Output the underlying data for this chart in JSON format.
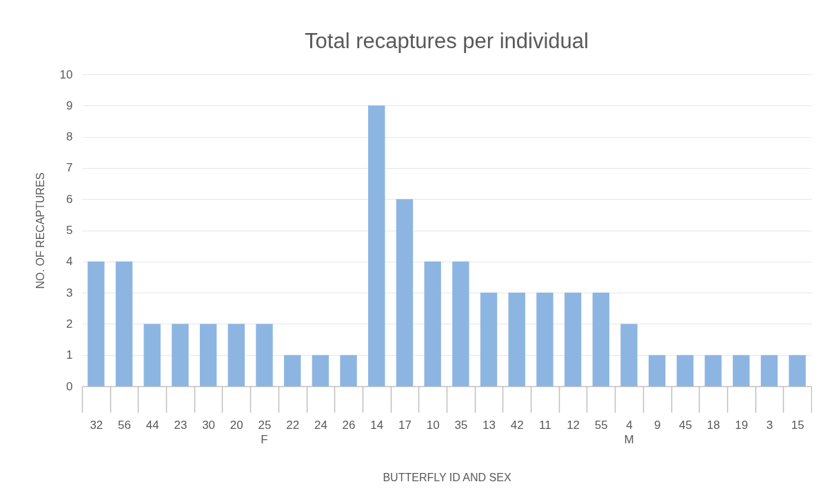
{
  "chart_data": {
    "type": "bar",
    "title": "Total recaptures per individual",
    "xlabel": "BUTTERFLY ID AND SEX",
    "ylabel": "NO. OF RECAPTURES",
    "categories": [
      "32",
      "56",
      "44",
      "23",
      "30",
      "20",
      "25",
      "22",
      "24",
      "26",
      "14",
      "17",
      "10",
      "35",
      "13",
      "42",
      "11",
      "12",
      "55",
      "4",
      "9",
      "45",
      "18",
      "19",
      "3",
      "15"
    ],
    "values": [
      4,
      4,
      2,
      2,
      2,
      2,
      2,
      1,
      1,
      1,
      9,
      6,
      4,
      4,
      3,
      3,
      3,
      3,
      3,
      2,
      1,
      1,
      1,
      1,
      1,
      1
    ],
    "color": "#8db5e2",
    "ylim": [
      0,
      10
    ],
    "yticks": [
      0,
      1,
      2,
      3,
      4,
      5,
      6,
      7,
      8,
      9,
      10
    ],
    "grid": "y",
    "annotations": [
      "F",
      "M"
    ]
  }
}
